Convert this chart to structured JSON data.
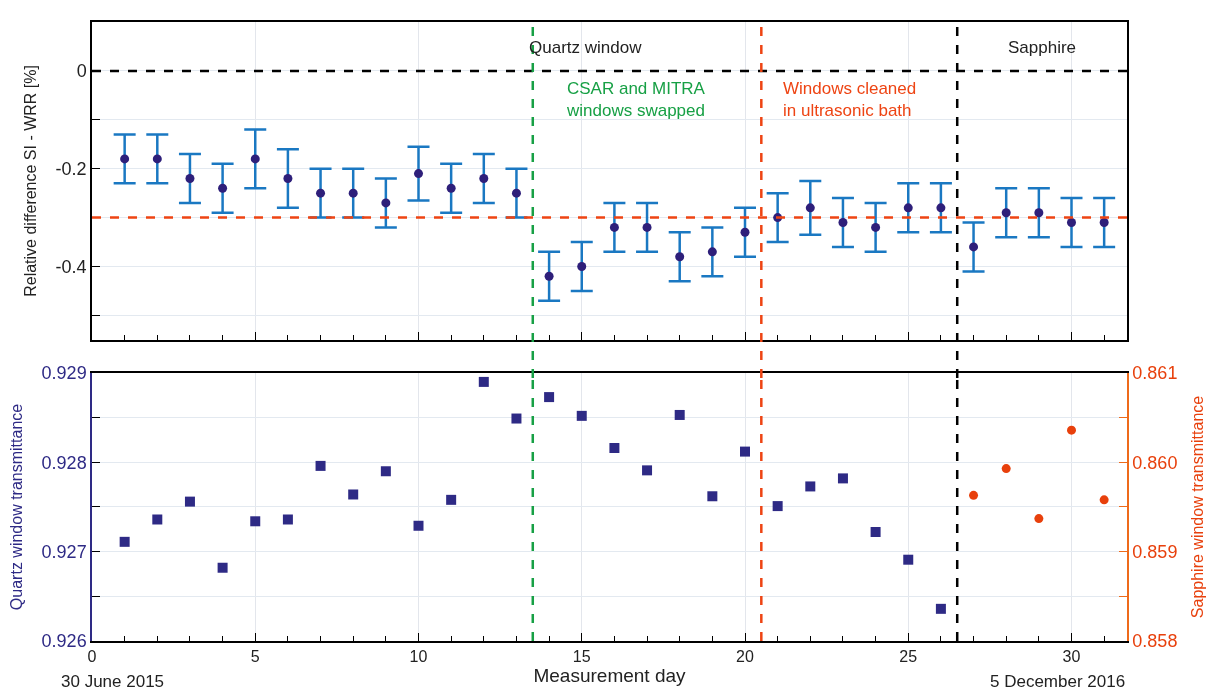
{
  "chart_data": [
    {
      "type": "scatter",
      "ylabel": "Relative difference SI - WRR [%]",
      "marker": "circle",
      "grid": true,
      "tick_labels": "y",
      "x": [
        1,
        2,
        3,
        4,
        5,
        6,
        7,
        8,
        9,
        10,
        11,
        12,
        13,
        14,
        15,
        16,
        17,
        18,
        19,
        20,
        21,
        22,
        23,
        24,
        25,
        26,
        27,
        28,
        29,
        30,
        31
      ],
      "series": [
        {
          "color": "#2e1f7a",
          "values": [
            -0.18,
            -0.18,
            -0.22,
            -0.24,
            -0.18,
            -0.22,
            -0.25,
            -0.25,
            -0.27,
            -0.21,
            -0.24,
            -0.22,
            -0.25,
            -0.42,
            -0.4,
            -0.32,
            -0.32,
            -0.38,
            -0.37,
            -0.33,
            -0.3,
            -0.28,
            -0.31,
            -0.32,
            -0.28,
            -0.28,
            -0.36,
            -0.29,
            -0.29,
            -0.31,
            -0.31
          ],
          "errors": [
            0.05,
            0.05,
            0.05,
            0.05,
            0.06,
            0.06,
            0.05,
            0.05,
            0.05,
            0.055,
            0.05,
            0.05,
            0.05,
            0.05,
            0.05,
            0.05,
            0.05,
            0.05,
            0.05,
            0.05,
            0.05,
            0.055,
            0.05,
            0.05,
            0.05,
            0.05,
            0.05,
            0.05,
            0.05,
            0.05,
            0.05
          ]
        }
      ],
      "xlim": [
        0,
        31.7
      ],
      "xticks": [
        0,
        5,
        10,
        15,
        20,
        25,
        30
      ],
      "ylim": [
        -0.55,
        0.1
      ],
      "yticks": [
        0,
        {
          "value": -0.1,
          "label": null
        },
        -0.2,
        {
          "value": -0.3,
          "label": null
        },
        -0.4,
        {
          "value": -0.5,
          "label": null
        }
      ],
      "ref_lines": [
        {
          "axis": "y",
          "value": 0,
          "color": "#000000",
          "line_style": "dashed"
        },
        {
          "axis": "y",
          "value": -0.3,
          "color": "#ee4413",
          "line_style": "dashed"
        },
        {
          "axis": "x",
          "value": 13.5,
          "color": "#17a045",
          "line_style": "dashed"
        },
        {
          "axis": "x",
          "value": 20.5,
          "color": "#ee4413",
          "line_style": "dashed"
        },
        {
          "axis": "x",
          "value": 26.5,
          "color": "#000000",
          "line_style": "dashed"
        }
      ],
      "annotations": [
        "Quartz window",
        "Sapphire",
        "CSAR and MITRA\nwindows swapped",
        "Windows cleaned\nin ultrasonic bath"
      ]
    },
    {
      "type": "scatter",
      "xlabel": "Measurement day",
      "ylabel": "Quartz window transmittance",
      "y2label": "Sapphire window transmittance",
      "grid": true,
      "series": [
        {
          "color": "#2e2a85",
          "marker": "square",
          "x": [
            1,
            2,
            3,
            4,
            5,
            6,
            7,
            8,
            9,
            10,
            11,
            12,
            13,
            14,
            15,
            16,
            17,
            18,
            19,
            20,
            21,
            22,
            23,
            24,
            25,
            26
          ],
          "values": [
            0.92711,
            0.92736,
            0.92756,
            0.92682,
            0.92734,
            0.92736,
            0.92796,
            0.92764,
            0.9279,
            0.92729,
            0.92758,
            0.9289,
            0.92849,
            0.92873,
            0.92852,
            0.92816,
            0.92791,
            0.92853,
            0.92762,
            0.92812,
            0.92751,
            0.92773,
            0.92782,
            0.92722,
            0.92691,
            0.92636
          ]
        },
        {
          "color": "#e8400c",
          "marker": "circle",
          "axis": "y2",
          "x": [
            27,
            28,
            29,
            30,
            31
          ],
          "values": [
            0.85963,
            0.85993,
            0.85937,
            0.86036,
            0.85958
          ]
        }
      ],
      "xlim": [
        0,
        31.7
      ],
      "xticks": [
        0,
        5,
        10,
        15,
        20,
        25,
        30
      ],
      "ylim": [
        0.926,
        0.929
      ],
      "yticks": [
        0.926,
        {
          "value": 0.9265,
          "label": null
        },
        0.927,
        {
          "value": 0.9275,
          "label": null
        },
        0.928,
        {
          "value": 0.9285,
          "label": null
        },
        0.929
      ],
      "y2lim": [
        0.858,
        0.861
      ],
      "y2ticks": [
        0.858,
        {
          "value": 0.8585,
          "label": null
        },
        0.859,
        {
          "value": 0.8595,
          "label": null
        },
        {
          "value": 0.86,
          "label": "0.860"
        },
        {
          "value": 0.8605,
          "label": null
        },
        0.861
      ],
      "ref_lines": [
        {
          "axis": "x",
          "value": 13.5,
          "color": "#17a045",
          "line_style": "dashed"
        },
        {
          "axis": "x",
          "value": 20.5,
          "color": "#ee4413",
          "line_style": "dashed"
        },
        {
          "axis": "x",
          "value": 26.5,
          "color": "#000000",
          "line_style": "dashed"
        }
      ],
      "annotations": [
        "30 June 2015",
        "5 December 2016"
      ]
    }
  ]
}
